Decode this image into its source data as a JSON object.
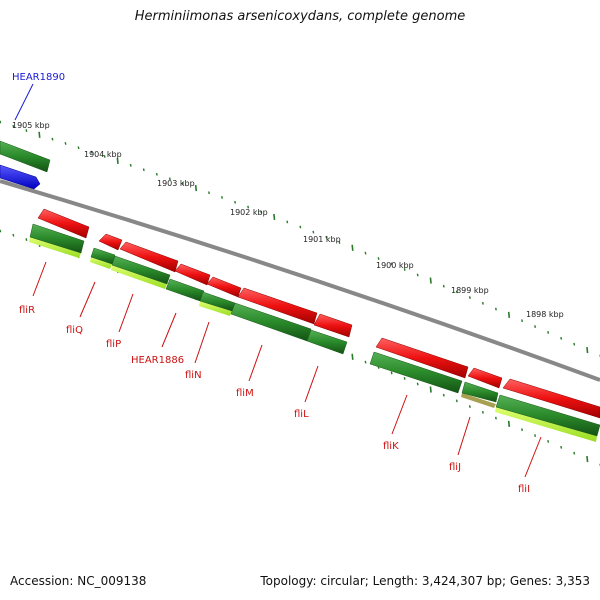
{
  "title": "Herminiimonas arsenicoxydans, complete genome",
  "footer": {
    "accession": "Accession: NC_009138",
    "topology": "Topology: circular; Length: 3,424,307 bp; Genes: 3,353"
  },
  "scale_labels": [
    "1905 kbp",
    "1904 kbp",
    "1903 kbp",
    "1902 kbp",
    "1901 kbp",
    "1900 kbp",
    "1899 kbp",
    "1898 kbp"
  ],
  "gene_labels": [
    "HEAR1890",
    "fliR",
    "fliQ",
    "fliP",
    "HEAR1886",
    "fliN",
    "fliM",
    "fliL",
    "fliK",
    "fliJ",
    "fliI"
  ],
  "colors": {
    "cds": "#ee1111",
    "gene": "#2a8a2a",
    "rna_like": "#1a1ae0",
    "backbone": "#888888",
    "ticks": "#2a7a2a",
    "highlight": "#aaee33",
    "label": "#cc1111",
    "label_blue": "#1a1ad6"
  }
}
